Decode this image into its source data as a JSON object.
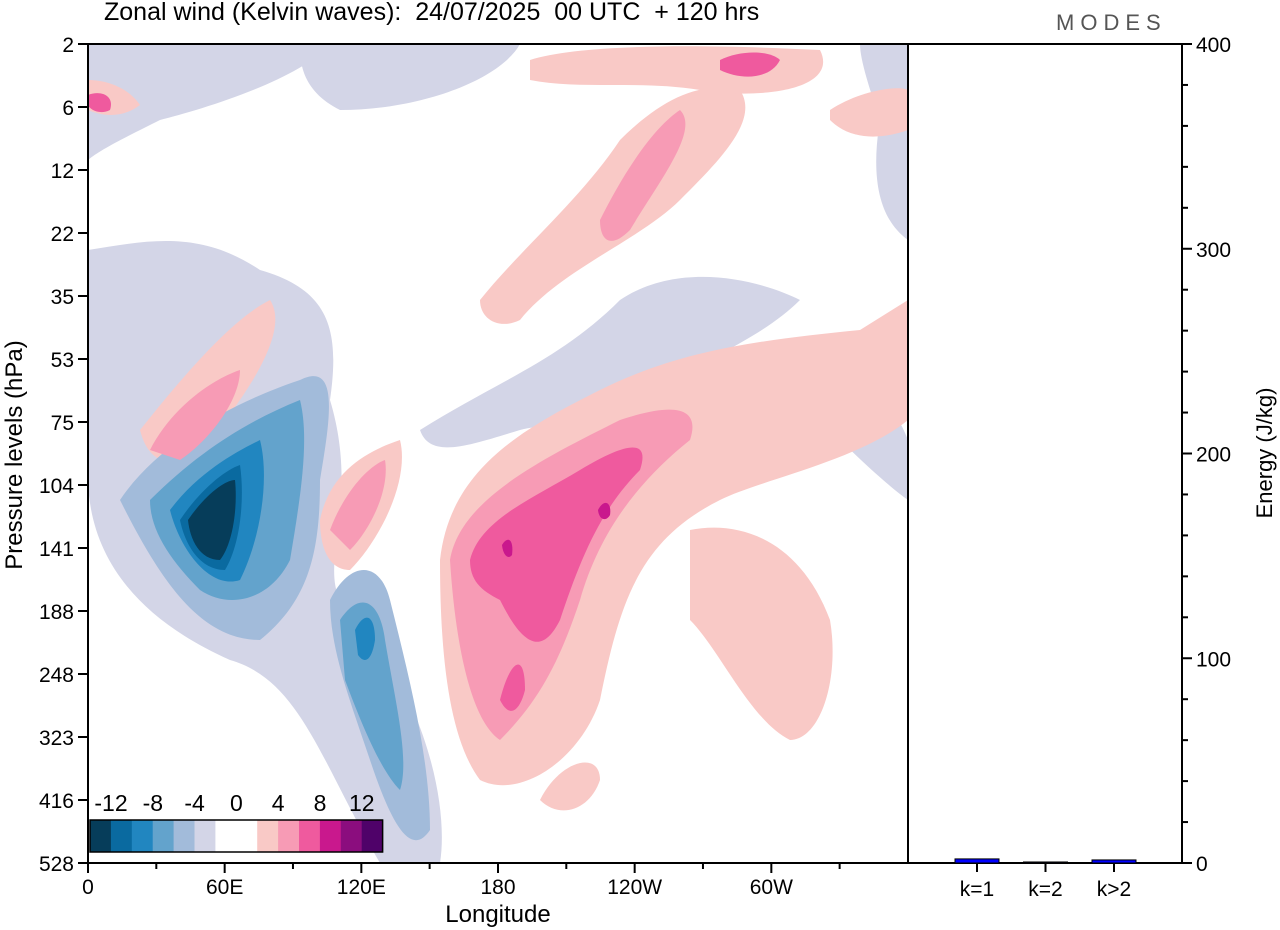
{
  "title": "Zonal wind (Kelvin waves):  24/07/2025  00 UTC  + 120 hrs",
  "logo": "MODES",
  "chart_data": [
    {
      "type": "heatmap",
      "title": "Zonal wind (Kelvin waves):  24/07/2025  00 UTC  + 120 hrs",
      "xlabel": "Longitude",
      "ylabel": "Pressure levels (hPa)",
      "x_ticks": [
        "0",
        "60E",
        "120E",
        "180",
        "120W",
        "60W"
      ],
      "y_ticks": [
        "2",
        "6",
        "12",
        "22",
        "35",
        "53",
        "75",
        "104",
        "141",
        "188",
        "248",
        "323",
        "416",
        "528"
      ],
      "colorbar": {
        "labels": [
          "-12",
          "-8",
          "-4",
          "0",
          "4",
          "8",
          "12"
        ],
        "colors": [
          "#063d5a",
          "#0a6aa0",
          "#2186c0",
          "#63a3cc",
          "#a2bbda",
          "#d3d5e7",
          "#ffffff",
          "#ffffff",
          "#f9c9c6",
          "#f79bb5",
          "#ef5a9e",
          "#c9188d",
          "#8b0d7e",
          "#4f0269"
        ]
      }
    },
    {
      "type": "bar",
      "ylabel": "Energy (J/kg)",
      "ylim": [
        0,
        400
      ],
      "y_ticks": [
        "0",
        "100",
        "200",
        "300",
        "400"
      ],
      "categories": [
        "k=1",
        "k=2",
        "k=>2"
      ],
      "labels": [
        "k=1",
        "k=2",
        "k>2"
      ],
      "values": [
        2,
        0.5,
        1.5
      ],
      "color": "#0000ff"
    }
  ]
}
